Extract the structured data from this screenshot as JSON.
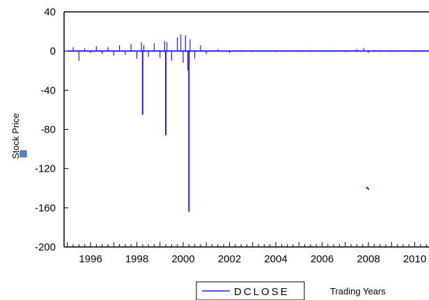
{
  "chart_data": {
    "type": "line",
    "title": "",
    "ylabel": "Stock Price",
    "xlabel": "Trading Years",
    "ylim": [
      -200,
      40
    ],
    "xlim": [
      1995.0,
      2011.0
    ],
    "y_ticks": [
      40,
      0,
      -40,
      -80,
      -120,
      -160,
      -200
    ],
    "x_ticks": [
      1996,
      1998,
      2000,
      2002,
      2004,
      2006,
      2008,
      2010
    ],
    "grid": false,
    "legend_position": "bottom",
    "colors": {
      "series": "#1a1aff",
      "axis": "#000000",
      "marker": "#4f86c6"
    },
    "series": [
      {
        "name": "DCLOSE",
        "x": [
          1995.0,
          1995.25,
          1995.5,
          1995.75,
          1996.0,
          1996.25,
          1996.5,
          1996.75,
          1997.0,
          1997.25,
          1997.5,
          1997.75,
          1998.0,
          1998.2,
          1998.25,
          1998.3,
          1998.5,
          1998.75,
          1999.0,
          1999.2,
          1999.25,
          1999.3,
          1999.5,
          1999.75,
          1999.9,
          2000.0,
          2000.1,
          2000.2,
          2000.25,
          2000.3,
          2000.5,
          2000.75,
          2001.0,
          2001.5,
          2002.0,
          2002.5,
          2003.0,
          2003.5,
          2004.0,
          2004.5,
          2005.0,
          2005.5,
          2006.0,
          2006.5,
          2007.0,
          2007.5,
          2007.8,
          2008.0,
          2008.25,
          2008.5,
          2009.0,
          2009.5,
          2010.0,
          2010.5,
          2011.0
        ],
        "values": [
          0,
          4,
          -10,
          3,
          -2,
          5,
          -3,
          4,
          -5,
          6,
          -4,
          7,
          -8,
          9,
          -65,
          6,
          -6,
          8,
          -7,
          10,
          -86,
          9,
          -10,
          14,
          17,
          -12,
          16,
          -20,
          -164,
          12,
          -8,
          6,
          -3,
          2,
          -2,
          1,
          -1,
          1,
          -1,
          1,
          -1,
          1,
          -1,
          1,
          -1,
          2,
          3,
          -2,
          1,
          -1,
          1,
          0,
          1,
          0,
          0
        ]
      }
    ],
    "legend_entries": [
      "DCLOSE"
    ]
  }
}
